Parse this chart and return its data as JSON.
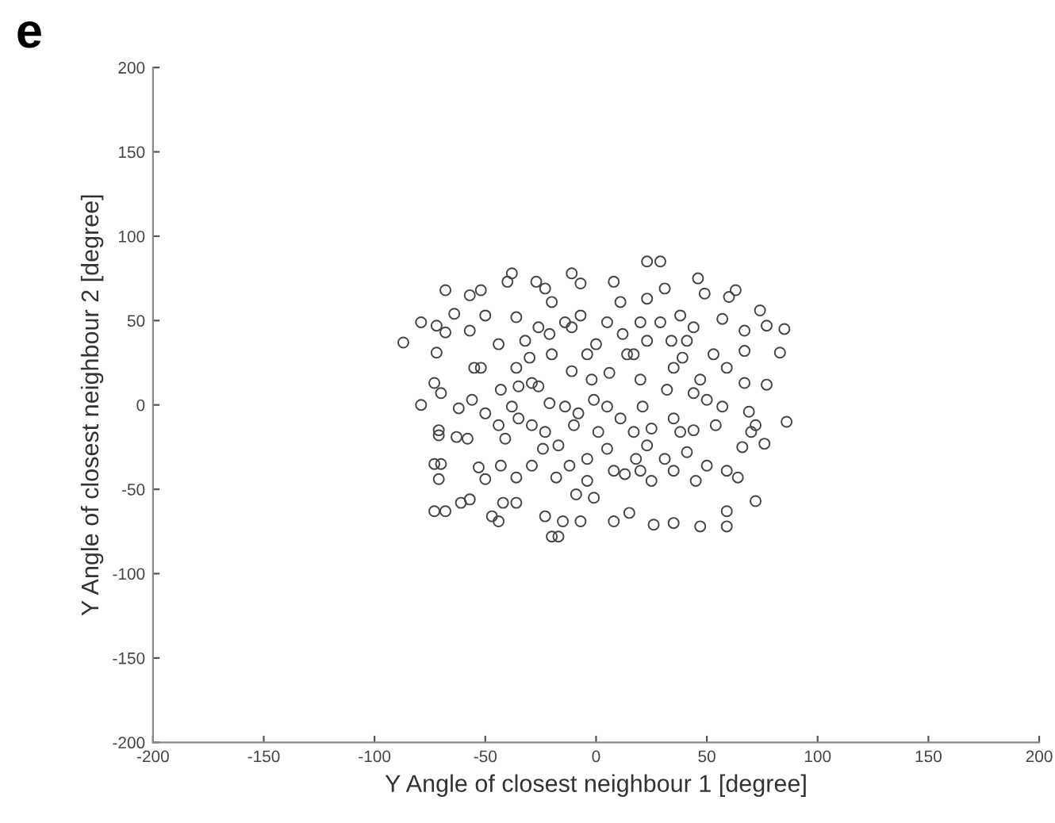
{
  "chart_data": {
    "type": "scatter",
    "xlabel": "Y Angle of closest neighbour 1 [degree]",
    "ylabel": "Y Angle of closest neighbour 2 [degree]",
    "annotations": [
      "e"
    ],
    "xlim": [
      -200,
      200
    ],
    "ylim": [
      -200,
      200
    ],
    "xticks": [
      -200,
      -150,
      -100,
      -50,
      0,
      50,
      100,
      150,
      200
    ],
    "yticks": [
      -200,
      -150,
      -100,
      -50,
      0,
      50,
      100,
      150,
      200
    ],
    "grid": false,
    "marker": "circle",
    "series": [
      {
        "color": "#444444",
        "x": [
          -87,
          -79,
          -79,
          -72,
          -68,
          -68,
          -72,
          -73,
          -70,
          -71,
          -71,
          -73,
          -70,
          -71,
          -73,
          -68,
          -61,
          -57,
          -63,
          -58,
          -62,
          -56,
          -64,
          -57,
          -52,
          -57,
          -55,
          -52,
          -50,
          -50,
          -53,
          -50,
          -47,
          -44,
          -42,
          -36,
          -40,
          -38,
          -43,
          -44,
          -36,
          -36,
          -43,
          -41,
          -35,
          -36,
          -27,
          -23,
          -30,
          -26,
          -29,
          -24,
          -23,
          -20,
          -17,
          -15,
          -18,
          -21,
          -21,
          -20,
          -11,
          -7,
          -11,
          -11,
          -8,
          -10,
          -12,
          -7,
          -9,
          -4,
          -1,
          -2,
          0,
          1,
          5,
          8,
          8,
          6,
          5,
          11,
          12,
          13,
          15,
          18,
          17,
          20,
          23,
          29,
          23,
          20,
          21,
          25,
          25,
          26,
          31,
          34,
          32,
          31,
          35,
          38,
          39,
          38,
          44,
          46,
          49,
          47,
          45,
          44,
          47,
          50,
          53,
          54,
          57,
          59,
          57,
          59,
          59,
          59,
          60,
          63,
          64,
          66,
          67,
          67,
          67,
          69,
          70,
          72,
          74,
          77,
          77,
          76,
          83,
          85,
          86,
          72,
          -35,
          -29,
          -20,
          -14,
          -4,
          5,
          14,
          23,
          35,
          44,
          35,
          23,
          11,
          -1,
          -14,
          -23,
          -29,
          -17,
          -4,
          8,
          20,
          35,
          41,
          -38,
          -44,
          -26,
          -32,
          -7,
          17,
          29,
          41,
          50
        ],
        "values": [
          37,
          0,
          49,
          47,
          43,
          68,
          31,
          13,
          7,
          -15,
          -18,
          -35,
          -35,
          -44,
          -63,
          -63,
          -58,
          -56,
          -19,
          -20,
          -2,
          3,
          54,
          65,
          68,
          44,
          22,
          22,
          53,
          -5,
          -37,
          -44,
          -66,
          -69,
          -58,
          -58,
          73,
          78,
          9,
          36,
          52,
          22,
          -36,
          -20,
          -8,
          -43,
          73,
          69,
          28,
          11,
          -12,
          -26,
          -66,
          -78,
          -78,
          -69,
          -43,
          1,
          42,
          61,
          78,
          72,
          46,
          20,
          -5,
          -12,
          -36,
          -69,
          -53,
          -45,
          -55,
          15,
          36,
          -16,
          -26,
          -69,
          73,
          19,
          -1,
          61,
          42,
          -41,
          -64,
          -32,
          -16,
          49,
          85,
          85,
          63,
          15,
          -1,
          -14,
          -45,
          -71,
          69,
          38,
          9,
          -32,
          -70,
          53,
          28,
          -16,
          46,
          75,
          66,
          -72,
          -45,
          -15,
          15,
          -36,
          30,
          -12,
          51,
          22,
          -1,
          -39,
          -72,
          -63,
          64,
          68,
          -43,
          -25,
          44,
          32,
          13,
          -4,
          -16,
          -57,
          56,
          47,
          12,
          -23,
          31,
          45,
          -10,
          -12,
          11,
          13,
          30,
          49,
          30,
          49,
          30,
          38,
          22,
          7,
          -8,
          -24,
          -8,
          3,
          -1,
          -16,
          -36,
          -24,
          -32,
          -39,
          -39,
          -39,
          -28,
          -1,
          -12,
          46,
          38,
          53,
          30,
          49,
          38,
          3
        ]
      }
    ]
  }
}
